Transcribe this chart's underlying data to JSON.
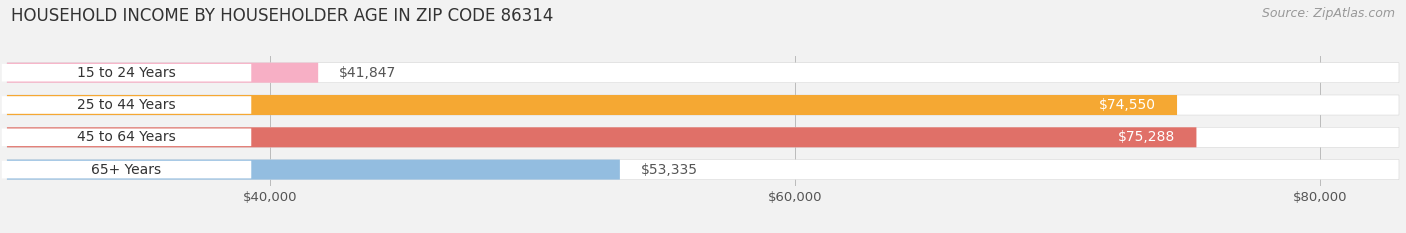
{
  "title": "HOUSEHOLD INCOME BY HOUSEHOLDER AGE IN ZIP CODE 86314",
  "source": "Source: ZipAtlas.com",
  "categories": [
    "15 to 24 Years",
    "25 to 44 Years",
    "45 to 64 Years",
    "65+ Years"
  ],
  "values": [
    41847,
    74550,
    75288,
    53335
  ],
  "bar_colors": [
    "#f7afc5",
    "#f5a833",
    "#e07068",
    "#93bde0"
  ],
  "label_colors": [
    "#444444",
    "#ffffff",
    "#ffffff",
    "#444444"
  ],
  "xlim": [
    30000,
    83000
  ],
  "xmin": 30000,
  "xticks": [
    40000,
    60000,
    80000
  ],
  "xtick_labels": [
    "$40,000",
    "$60,000",
    "$80,000"
  ],
  "bar_height": 0.62,
  "background_color": "#f2f2f2",
  "bar_bg_color": "#e6e6e6",
  "title_fontsize": 12,
  "source_fontsize": 9,
  "label_fontsize": 10,
  "value_fontsize": 10,
  "tick_fontsize": 9.5
}
